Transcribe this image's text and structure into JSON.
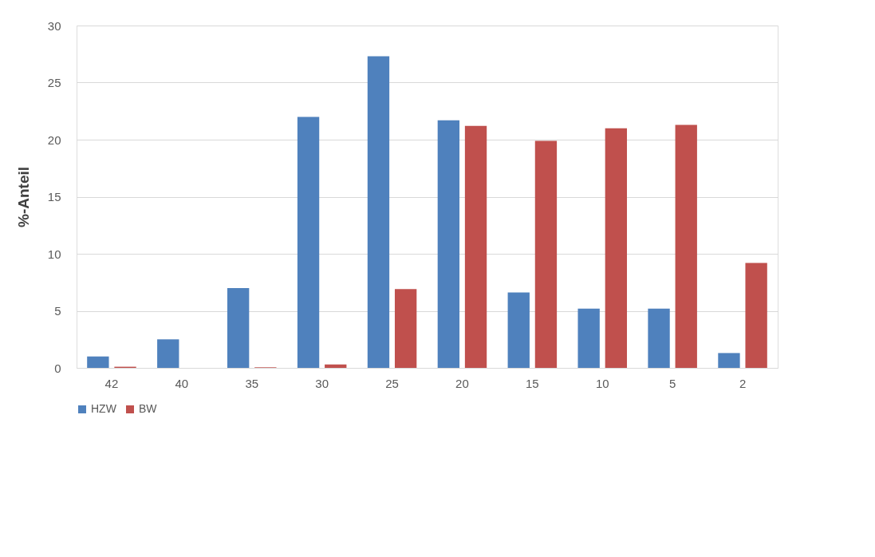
{
  "chart_data": {
    "type": "bar",
    "ylabel": "%-Anteil",
    "categories": [
      "42",
      "40",
      "35",
      "30",
      "25",
      "20",
      "15",
      "10",
      "5",
      "2"
    ],
    "series": [
      {
        "name": "HZW",
        "color": "#4f81bd",
        "values": [
          1.0,
          2.5,
          7.0,
          22.0,
          27.3,
          21.7,
          6.6,
          5.2,
          5.2,
          1.3
        ]
      },
      {
        "name": "BW",
        "color": "#c0504d",
        "values": [
          0.1,
          0,
          0.05,
          0.3,
          6.9,
          21.2,
          19.9,
          21.0,
          21.3,
          9.2
        ]
      }
    ],
    "ylim": [
      0,
      30
    ],
    "yticks": [
      0,
      5,
      10,
      15,
      20,
      25,
      30
    ],
    "grid": "y",
    "legend": "bottom"
  }
}
